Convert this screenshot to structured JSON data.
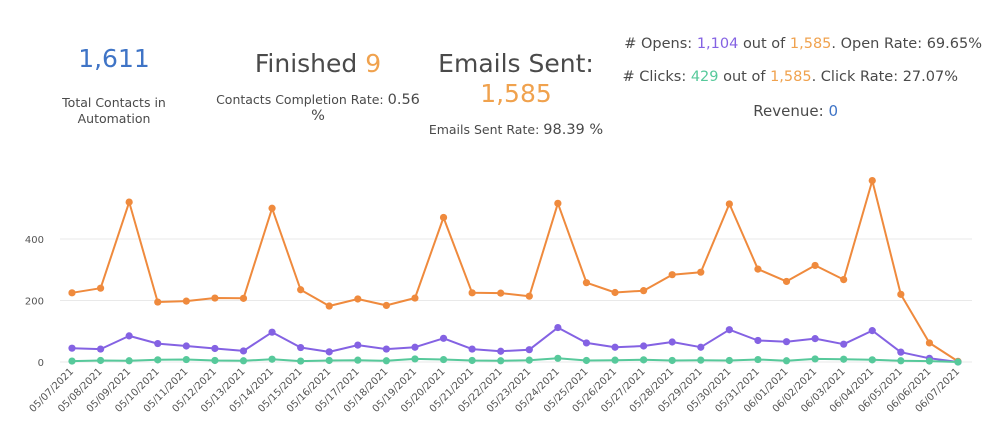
{
  "colors": {
    "blue": "#3f74c6",
    "orange": "#f0a24e",
    "line_orange": "#ef8a3d",
    "purple": "#8462e3",
    "green": "#57c99b",
    "text": "#4a4a4a",
    "grid": "#e9e9e9"
  },
  "summary": {
    "total_contacts": {
      "value": "1,611",
      "label": "Total Contacts in Automation"
    },
    "finished": {
      "label": "Finished",
      "value": "9",
      "rate_label": "Contacts Completion Rate:",
      "rate_value": "0.56 %"
    },
    "emails_sent": {
      "label": "Emails Sent:",
      "value": "1,585",
      "rate_label": "Emails Sent Rate:",
      "rate_value": "98.39 %"
    },
    "opens": {
      "prefix": "# Opens:",
      "count": "1,104",
      "out_of": "out of",
      "total": "1,585",
      "rate_label": ". Open Rate: 69.65%"
    },
    "clicks": {
      "prefix": "# Clicks:",
      "count": "429",
      "out_of": "out of",
      "total": "1,585",
      "rate_label": ". Click Rate: 27.07%"
    },
    "revenue": {
      "label": "Revenue:",
      "value": "0"
    }
  },
  "chart_data": {
    "type": "line",
    "x": [
      "05/07/2021",
      "05/08/2021",
      "05/09/2021",
      "05/10/2021",
      "05/11/2021",
      "05/12/2021",
      "05/13/2021",
      "05/14/2021",
      "05/15/2021",
      "05/16/2021",
      "05/17/2021",
      "05/18/2021",
      "05/19/2021",
      "05/20/2021",
      "05/21/2021",
      "05/22/2021",
      "05/23/2021",
      "05/24/2021",
      "05/25/2021",
      "05/26/2021",
      "05/27/2021",
      "05/28/2021",
      "05/29/2021",
      "05/30/2021",
      "05/31/2021",
      "06/01/2021",
      "06/02/2021",
      "06/03/2021",
      "06/04/2021",
      "06/05/2021",
      "06/06/2021",
      "06/07/2021"
    ],
    "yticks": [
      0,
      200,
      400
    ],
    "ylim": [
      0,
      600
    ],
    "grid": true,
    "series": [
      {
        "color": "#ef8a3d",
        "values": [
          225,
          240,
          520,
          195,
          198,
          208,
          207,
          500,
          235,
          182,
          205,
          184,
          208,
          470,
          225,
          224,
          214,
          516,
          258,
          226,
          232,
          284,
          292,
          514,
          302,
          262,
          314,
          268,
          590,
          220,
          62,
          2
        ]
      },
      {
        "color": "#8462e3",
        "values": [
          45,
          42,
          85,
          60,
          52,
          44,
          36,
          97,
          47,
          33,
          55,
          42,
          48,
          77,
          42,
          35,
          40,
          112,
          62,
          48,
          52,
          65,
          48,
          105,
          70,
          66,
          76,
          58,
          102,
          32,
          12,
          0
        ]
      },
      {
        "color": "#57c99b",
        "values": [
          3,
          5,
          4,
          7,
          8,
          5,
          4,
          9,
          3,
          5,
          6,
          4,
          10,
          8,
          5,
          4,
          6,
          12,
          5,
          6,
          7,
          5,
          6,
          5,
          8,
          4,
          10,
          9,
          7,
          4,
          3,
          0
        ]
      }
    ]
  }
}
